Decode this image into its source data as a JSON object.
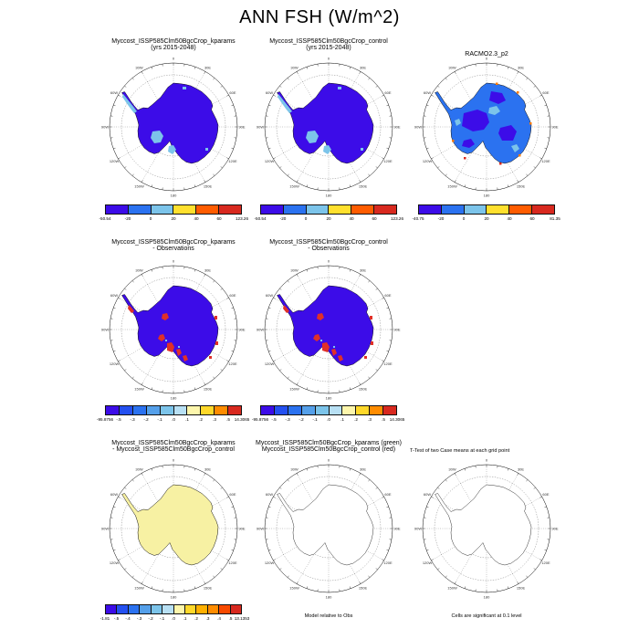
{
  "title": "ANN FSH (W/m^2)",
  "compass_labels": [
    "0",
    "30E",
    "60E",
    "90E",
    "120E",
    "150E",
    "180",
    "150W",
    "120W",
    "90W",
    "60W",
    "30W"
  ],
  "colors": {
    "violet": "#3c0ce8",
    "royal": "#2b72f0",
    "cyan": "#7cc4ea",
    "yellow": "#ffe02e",
    "orange": "#ff7a00",
    "red": "#d8291f",
    "red_patch": "#e03028",
    "pale_yellow": "#f7f1a3",
    "white": "#ffffff",
    "coast": "#111111"
  },
  "palettes": {
    "p6": [
      "#3c0ce8",
      "#2b72f0",
      "#7cc4ea",
      "#ffe02e",
      "#ff5c00",
      "#d8291f"
    ],
    "p10": [
      "#3c0ce8",
      "#2450f0",
      "#2b72f0",
      "#55a0ea",
      "#7cc4ea",
      "#b8e0f4",
      "#fdf6ac",
      "#ffd82a",
      "#ff8c00",
      "#d8291f"
    ],
    "p12": [
      "#3c0ce8",
      "#2450f0",
      "#2b72f0",
      "#55a0ea",
      "#7cc4ea",
      "#b8e0f4",
      "#fdf6ac",
      "#ffd82a",
      "#ffb000",
      "#ff8c00",
      "#f84a00",
      "#d8291f"
    ]
  },
  "panels": [
    {
      "id": "kparams_mean",
      "title_lines": [
        "Myccost_ISSP585Clm50BgcCrop_kparams",
        "(yrs 2015-2048)"
      ],
      "map": {
        "fill": "violet"
      },
      "colorbar": {
        "palette": "p6",
        "labels": [
          "-50.54",
          "-20",
          "0",
          "20",
          "40",
          "60",
          "123.26"
        ]
      }
    },
    {
      "id": "control_mean",
      "title_lines": [
        "Myccost_ISSP585Clm50BgcCrop_control",
        "(yrs 2015-2048)"
      ],
      "map": {
        "fill": "violet"
      },
      "colorbar": {
        "palette": "p6",
        "labels": [
          "-50.54",
          "-20",
          "0",
          "20",
          "40",
          "60",
          "123.26"
        ]
      }
    },
    {
      "id": "racmo",
      "title_lines": [
        "RACMO2.3_p2"
      ],
      "map": {
        "fill": "royal"
      },
      "colorbar": {
        "palette": "p6",
        "labels": [
          "-40.75",
          "-20",
          "0",
          "20",
          "40",
          "60",
          "81.35"
        ]
      }
    },
    {
      "id": "kparams_minus_obs",
      "title_lines": [
        "Myccost_ISSP585Clm50BgcCrop_kparams",
        "- Observations"
      ],
      "map": {
        "fill": "violet"
      },
      "colorbar": {
        "palette": "p10",
        "labels": [
          "-95.8756",
          "-.5",
          "-.3",
          "-.2",
          "-.1",
          ".0",
          ".1",
          ".2",
          ".3",
          ".5",
          "14.3065"
        ]
      }
    },
    {
      "id": "control_minus_obs",
      "title_lines": [
        "Myccost_ISSP585Clm50BgcCrop_control",
        "- Observations"
      ],
      "map": {
        "fill": "violet"
      },
      "colorbar": {
        "palette": "p10",
        "labels": [
          "-95.8756",
          "-.5",
          "-.3",
          "-.2",
          "-.1",
          ".0",
          ".1",
          ".2",
          ".3",
          ".5",
          "14.3065"
        ]
      }
    },
    {
      "id": "kparams_minus_control",
      "title_lines": [
        "Myccost_ISSP585Clm50BgcCrop_kparams",
        "- Myccost_ISSP585Clm50BgcCrop_control"
      ],
      "map": {
        "fill": "pale_yellow"
      },
      "colorbar": {
        "palette": "p12",
        "labels": [
          "-1.81",
          "-.5",
          "-.4",
          "-.3",
          "-.2",
          "-.1",
          ".0",
          ".1",
          ".2",
          ".3",
          ".4",
          ".5",
          "13.1353"
        ]
      }
    },
    {
      "id": "overlay_cases",
      "title_lines": [
        "Myccost_ISSP585Clm50BgcCrop_kparams (green)",
        "Myccost_ISSP585Clm50BgcCrop_control (red)"
      ],
      "map": {
        "fill": "white"
      },
      "caption": "Model relative to Obs"
    },
    {
      "id": "ttest",
      "title_lines": [
        "T-Test of two Case means at each grid point"
      ],
      "map": {
        "fill": "white"
      },
      "caption": "Cells are significant at 0.1 level"
    }
  ],
  "chart_data": {
    "type": "heatmap",
    "title": "ANN FSH (W/m^2)",
    "projection": "South polar stereographic maps of Antarctica",
    "legend_position": "below each panel (horizontal labelbar)",
    "panels": [
      {
        "title": "Myccost_ISSP585Clm50BgcCrop_kparams (yrs 2015-2048)",
        "units": "W/m^2",
        "colorbar_ticks": [
          -50.54,
          -20,
          0,
          20,
          40,
          60,
          123.26
        ],
        "range": [
          -50.54,
          123.26
        ]
      },
      {
        "title": "Myccost_ISSP585Clm50BgcCrop_control (yrs 2015-2048)",
        "units": "W/m^2",
        "colorbar_ticks": [
          -50.54,
          -20,
          0,
          20,
          40,
          60,
          123.26
        ],
        "range": [
          -50.54,
          123.26
        ]
      },
      {
        "title": "RACMO2.3_p2",
        "units": "W/m^2",
        "colorbar_ticks": [
          -40.75,
          -20,
          0,
          20,
          40,
          60,
          81.35
        ],
        "range": [
          -40.75,
          81.35
        ]
      },
      {
        "title": "Myccost_ISSP585Clm50BgcCrop_kparams - Observations",
        "units": "W/m^2",
        "colorbar_ticks": [
          -95.8756,
          -0.5,
          -0.3,
          -0.2,
          -0.1,
          0,
          0.1,
          0.2,
          0.3,
          0.5,
          14.3065
        ],
        "range": [
          -95.8756,
          14.3065
        ]
      },
      {
        "title": "Myccost_ISSP585Clm50BgcCrop_control - Observations",
        "units": "W/m^2",
        "colorbar_ticks": [
          -95.8756,
          -0.5,
          -0.3,
          -0.2,
          -0.1,
          0,
          0.1,
          0.2,
          0.3,
          0.5,
          14.3065
        ],
        "range": [
          -95.8756,
          14.3065
        ]
      },
      {
        "title": "Myccost_ISSP585Clm50BgcCrop_kparams - Myccost_ISSP585Clm50BgcCrop_control",
        "units": "W/m^2",
        "colorbar_ticks": [
          -1.81,
          -0.5,
          -0.4,
          -0.3,
          -0.2,
          -0.1,
          0,
          0.1,
          0.2,
          0.3,
          0.4,
          0.5,
          13.1353
        ],
        "range": [
          -1.81,
          13.1353
        ]
      },
      {
        "title": "Myccost_ISSP585Clm50BgcCrop_kparams (green) / Myccost_ISSP585Clm50BgcCrop_control (red)",
        "note": "Model relative to Obs",
        "style": "coastline outline only"
      },
      {
        "title": "T-Test of two Case means at each grid point",
        "note": "Cells are significant at 0.1 level",
        "style": "coastline outline only"
      }
    ]
  }
}
